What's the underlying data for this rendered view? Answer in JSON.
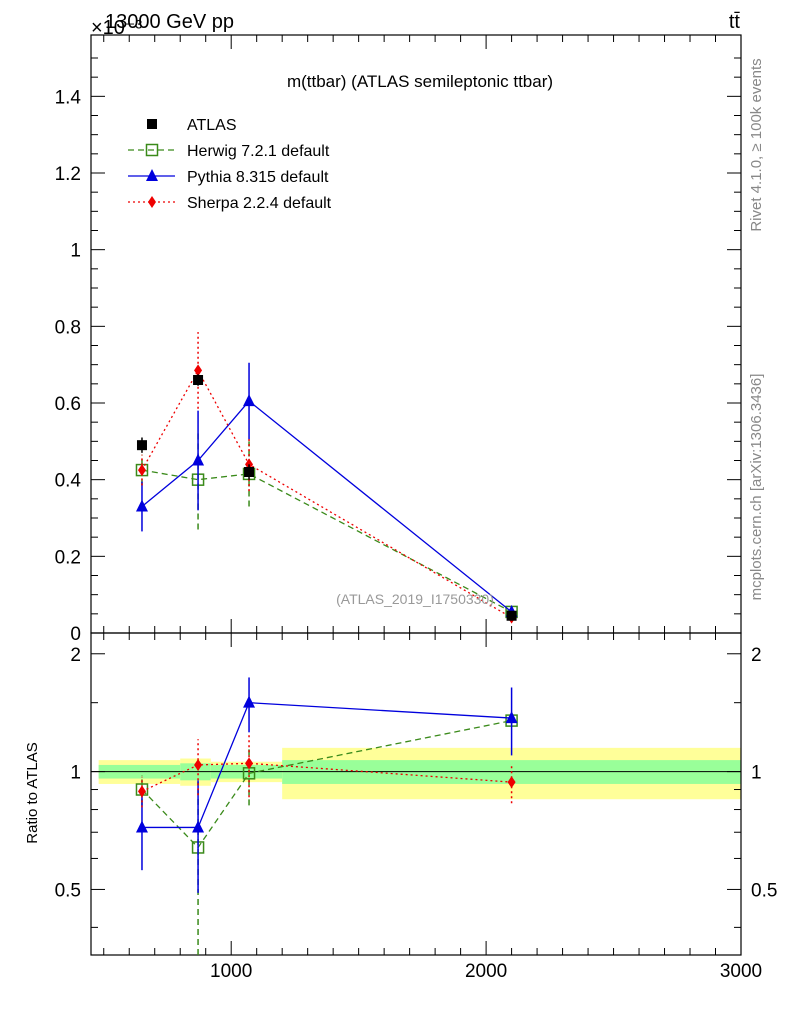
{
  "header": {
    "energy_label": "13000 GeV pp",
    "process_label": "tt̄",
    "exponent_label": "×10⁻³"
  },
  "side_labels": {
    "rivet": "Rivet 4.1.0, ≥ 100k events",
    "mcplots": "mcplots.cern.ch [arXiv:1306.3436]"
  },
  "colors": {
    "atlas": "#000000",
    "herwig": "#3a8a1a",
    "pythia": "#0000dd",
    "sherpa": "#ee0000",
    "band_inner": "#99ff99",
    "band_outer": "#ffff99"
  },
  "chart_data": [
    {
      "type": "line",
      "panel": "main",
      "title": "m(ttbar) (ATLAS semileptonic ttbar)",
      "watermark": "(ATLAS_2019_I1750330)",
      "xlabel": "",
      "ylabel": "",
      "xlim": [
        450,
        3000
      ],
      "ylim": [
        0,
        1.56
      ],
      "ytick_labels": [
        "0",
        "0.2",
        "0.4",
        "0.6",
        "0.8",
        "1",
        "1.2",
        "1.4"
      ],
      "yticks": [
        0,
        0.2,
        0.4,
        0.6,
        0.8,
        1.0,
        1.2,
        1.4
      ],
      "legend_position": "top-left",
      "series": [
        {
          "name": "ATLAS",
          "style": "data",
          "marker": "square-filled",
          "x": [
            650,
            870,
            1070,
            2100
          ],
          "y": [
            0.49,
            0.66,
            0.42,
            0.045
          ],
          "err": [
            0.02,
            0.015,
            0.02,
            0.005
          ]
        },
        {
          "name": "Herwig 7.2.1 default",
          "style": "dashed",
          "marker": "square-open",
          "x": [
            650,
            870,
            1070,
            2100
          ],
          "y": [
            0.425,
            0.4,
            0.415,
            0.055
          ],
          "err": [
            0.04,
            0.13,
            0.085,
            0.01
          ]
        },
        {
          "name": "Pythia 8.315 default",
          "style": "solid",
          "marker": "triangle",
          "x": [
            650,
            870,
            1070,
            2100
          ],
          "y": [
            0.33,
            0.45,
            0.605,
            0.055
          ],
          "err": [
            0.065,
            0.13,
            0.1,
            0.01
          ]
        },
        {
          "name": "Sherpa 2.2.4 default",
          "style": "dotted",
          "marker": "diamond",
          "x": [
            650,
            870,
            1070,
            2100
          ],
          "y": [
            0.425,
            0.685,
            0.44,
            0.04
          ],
          "err": [
            0.04,
            0.1,
            0.07,
            0.005
          ]
        }
      ]
    },
    {
      "type": "line",
      "panel": "ratio",
      "ylabel": "Ratio to ATLAS",
      "xlim": [
        450,
        3000
      ],
      "ylim": [
        0.34,
        2.26
      ],
      "xtick_labels": [
        "1000",
        "2000",
        "3000"
      ],
      "xticks": [
        1000,
        2000,
        3000
      ],
      "ytick_labels": [
        "0.5",
        "1",
        "2"
      ],
      "yticks": [
        0.5,
        1.0,
        2.0
      ],
      "reference_line": 1.0,
      "bands": [
        {
          "x0": 480,
          "x1": 800,
          "inner": [
            0.96,
            1.04
          ],
          "outer": [
            0.93,
            1.07
          ]
        },
        {
          "x0": 800,
          "x1": 920,
          "inner": [
            0.95,
            1.05
          ],
          "outer": [
            0.92,
            1.08
          ]
        },
        {
          "x0": 920,
          "x1": 1200,
          "inner": [
            0.96,
            1.04
          ],
          "outer": [
            0.94,
            1.06
          ]
        },
        {
          "x0": 1200,
          "x1": 3000,
          "inner": [
            0.93,
            1.07
          ],
          "outer": [
            0.85,
            1.15
          ]
        }
      ],
      "series": [
        {
          "name": "Herwig 7.2.1 default",
          "style": "dashed",
          "marker": "square-open",
          "x": [
            650,
            870,
            1070,
            2100
          ],
          "y": [
            0.9,
            0.64,
            0.99,
            1.35
          ],
          "err": [
            0.08,
            0.3,
            0.17,
            0.03
          ]
        },
        {
          "name": "Pythia 8.315 default",
          "style": "solid",
          "marker": "triangle",
          "x": [
            650,
            870,
            1070,
            2100
          ],
          "y": [
            0.72,
            0.72,
            1.5,
            1.37
          ],
          "err": [
            0.16,
            0.23,
            0.24,
            0.27
          ]
        },
        {
          "name": "Sherpa 2.2.4 default",
          "style": "dotted",
          "marker": "diamond",
          "x": [
            650,
            870,
            1070,
            2100
          ],
          "y": [
            0.89,
            1.04,
            1.05,
            0.94
          ],
          "err": [
            0.08,
            0.17,
            0.19,
            0.11
          ]
        }
      ]
    }
  ]
}
